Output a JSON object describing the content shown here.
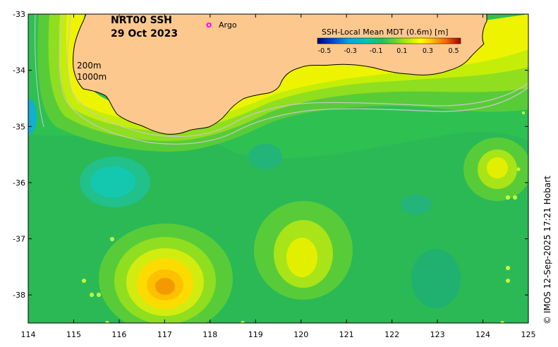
{
  "title": {
    "product": "NRT00 SSH",
    "date": "29 Oct 2023"
  },
  "legend": {
    "marker_symbol": "o",
    "marker_label": "Argo",
    "marker_color": "#ff00ff"
  },
  "colorbar": {
    "title": "SSH-Local Mean MDT (0.6m) [m]",
    "tick_labels": [
      "-0.5",
      "-0.3",
      "-0.1",
      "0.1",
      "0.3",
      "0.5"
    ],
    "colors": [
      "#000080",
      "#0050d0",
      "#00a0e0",
      "#00c8c0",
      "#10c890",
      "#20c060",
      "#50d030",
      "#90e020",
      "#d0f000",
      "#ffff00",
      "#ffc000",
      "#ff7000",
      "#e03000",
      "#a00000"
    ]
  },
  "contours": {
    "shallow_label": "200m",
    "deep_label": "1000m"
  },
  "axes": {
    "x_ticks": [
      "114",
      "115",
      "116",
      "117",
      "118",
      "119",
      "120",
      "121",
      "122",
      "123",
      "124",
      "125"
    ],
    "y_ticks": [
      "-33",
      "-34",
      "-35",
      "-36",
      "-37",
      "-38"
    ],
    "x_range": [
      114,
      125
    ],
    "y_range": [
      -38.5,
      -33
    ]
  },
  "credit": "© IMOS 12-Sep-2025 17:21 Hobart",
  "colors": {
    "land": "#fcc88e",
    "ocean_base": "#2fc052",
    "coastline": "#000000",
    "bathy_contour": "#c8c8c8"
  }
}
